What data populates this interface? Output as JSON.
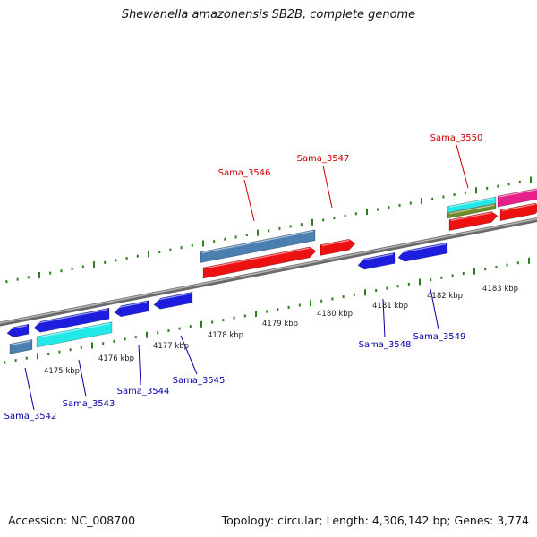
{
  "title": "Shewanella amazonensis SB2B, complete genome",
  "footer": {
    "accession": "Accession: NC_008700",
    "summary": "Topology: circular; Length: 4,306,142 bp; Genes: 3,774"
  },
  "colors": {
    "backbone": "#8a8a8a",
    "tick": "#2e7d1e",
    "forward_cds": "#1d1de0",
    "gene_steelblue": "#4a7fb0",
    "cyan": "#22e8e8",
    "red_cds": "#ee1111",
    "pink": "#e8208c",
    "olive": "#6e8c2a",
    "label_red": "#cc0000",
    "label_blue": "#0000aa"
  },
  "scale": {
    "ticks": [
      {
        "label": "4175 kbp"
      },
      {
        "label": "4176 kbp"
      },
      {
        "label": "4177 kbp"
      },
      {
        "label": "4178 kbp"
      },
      {
        "label": "4179 kbp"
      },
      {
        "label": "4180 kbp"
      },
      {
        "label": "4181 kbp"
      },
      {
        "label": "4182 kbp"
      },
      {
        "label": "4183 kbp"
      }
    ]
  },
  "genes_above": [
    {
      "label": "Sama_3546",
      "color_key": "label_red"
    },
    {
      "label": "Sama_3547",
      "color_key": "label_red"
    },
    {
      "label": "Sama_3550",
      "color_key": "label_red"
    }
  ],
  "genes_below": [
    {
      "label": "Sama_3542",
      "color_key": "label_blue"
    },
    {
      "label": "Sama_3543",
      "color_key": "label_blue"
    },
    {
      "label": "Sama_3544",
      "color_key": "label_blue"
    },
    {
      "label": "Sama_3545",
      "color_key": "label_blue"
    },
    {
      "label": "Sama_3548",
      "color_key": "label_blue"
    },
    {
      "label": "Sama_3549",
      "color_key": "label_blue"
    }
  ]
}
